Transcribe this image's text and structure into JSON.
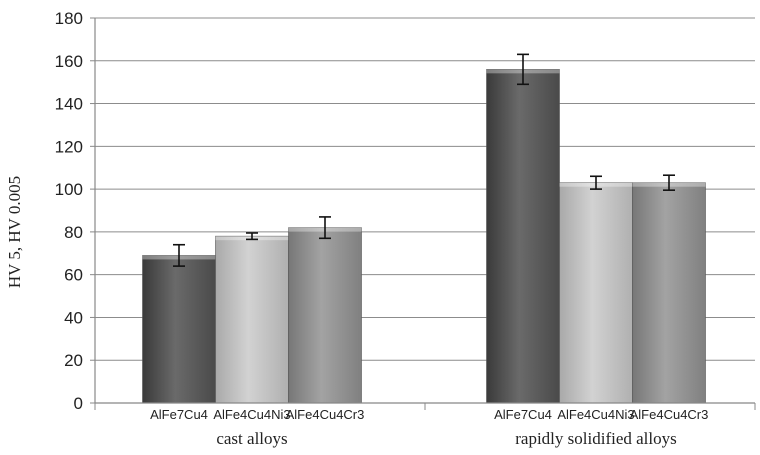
{
  "chart_data": {
    "type": "bar",
    "ylabel": "HV 5, HV 0.005",
    "ylim": [
      0,
      180
    ],
    "yticks": [
      0,
      20,
      40,
      60,
      80,
      100,
      120,
      140,
      160,
      180
    ],
    "grid": true,
    "groups": [
      {
        "label": "cast alloys",
        "bars": [
          {
            "name": "AlFe7Cu4",
            "value": 69,
            "error": 5,
            "color": "#555555"
          },
          {
            "name": "AlFe4Cu4Ni3",
            "value": 78,
            "error": 1.5,
            "color": "#b9b9b9"
          },
          {
            "name": "AlFe4Cu4Cr3",
            "value": 82,
            "error": 5,
            "color": "#8a8a8a"
          }
        ]
      },
      {
        "label": "rapidly solidified alloys",
        "bars": [
          {
            "name": "AlFe7Cu4",
            "value": 156,
            "error": 7,
            "color": "#555555"
          },
          {
            "name": "AlFe4Cu4Ni3",
            "value": 103,
            "error": 3,
            "color": "#b9b9b9"
          },
          {
            "name": "AlFe4Cu4Cr3",
            "value": 103,
            "error": 3.5,
            "color": "#8a8a8a"
          }
        ]
      }
    ]
  }
}
